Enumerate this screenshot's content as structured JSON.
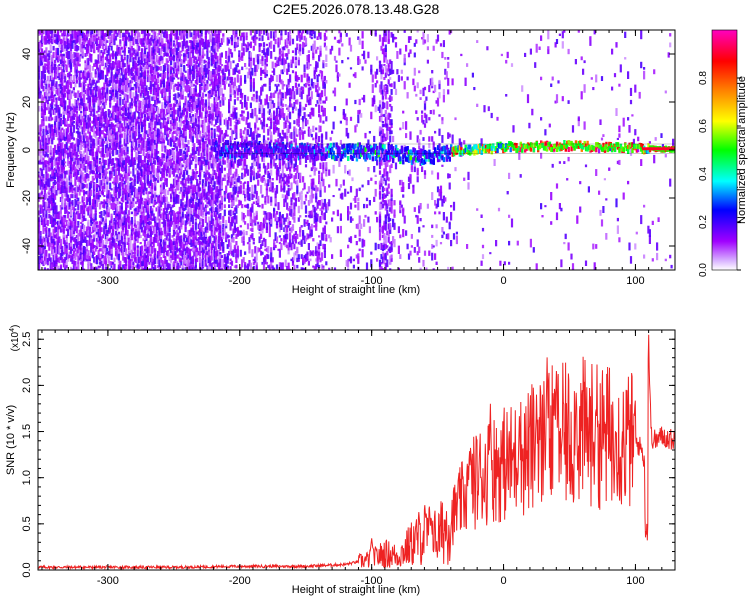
{
  "figure": {
    "title": "C2E5.2026.078.13.48.G28"
  },
  "chart_data": [
    {
      "type": "heatmap",
      "xlabel": "Height of straight line (km)",
      "ylabel": "Frequency (Hz)",
      "xlim": [
        -353,
        130
      ],
      "ylim": [
        -50,
        50
      ],
      "x_ticks": [
        -300,
        -200,
        -100,
        0,
        100
      ],
      "y_ticks": [
        -40,
        -20,
        0,
        20,
        40
      ],
      "colorbar": {
        "label": "Normalized spectral amplitude",
        "range": [
          0,
          1
        ],
        "ticks": [
          "0.0",
          "0.2",
          "0.4",
          "0.6",
          "0.8"
        ],
        "colors": [
          "#ffffff",
          "#a000ff",
          "#0000ff",
          "#00ffff",
          "#00ff00",
          "#ffff00",
          "#ff8000",
          "#ff0000",
          "#ff00c0"
        ]
      },
      "regions": [
        {
          "x": [
            -353,
            -215
          ],
          "description": "dense scattered low-amplitude noise"
        },
        {
          "x": [
            -215,
            -135
          ],
          "description": "sparser noise, faint band near 0 Hz"
        },
        {
          "x": [
            -135,
            -40
          ],
          "description": "band emerges near 0 Hz, mixed amplitude"
        },
        {
          "x": [
            -40,
            110
          ],
          "description": "strong coherent band near 1 Hz"
        },
        {
          "x": [
            110,
            130
          ],
          "description": "narrow line at 0 Hz"
        }
      ],
      "ridge": [
        {
          "x": -215,
          "f": 0
        },
        {
          "x": -150,
          "f": -1
        },
        {
          "x": -100,
          "f": -1
        },
        {
          "x": -60,
          "f": -3
        },
        {
          "x": -40,
          "f": -1
        },
        {
          "x": 0,
          "f": 1
        },
        {
          "x": 50,
          "f": 1.5
        },
        {
          "x": 100,
          "f": 0.5
        },
        {
          "x": 130,
          "f": 0
        }
      ]
    },
    {
      "type": "line",
      "xlabel": "Height of straight line (km)",
      "ylabel": "SNR (10 * v/v)",
      "y_multiplier_label": "(x10",
      "y_multiplier_exp": "4",
      "xlim": [
        -353,
        130
      ],
      "ylim": [
        0,
        2.6
      ],
      "x_ticks": [
        -300,
        -200,
        -100,
        0,
        100
      ],
      "y_ticks": [
        "0.0",
        "0.5",
        "1.0",
        "1.5",
        "2.0",
        "2.5"
      ],
      "series": [
        {
          "color": "#ee2222",
          "x": [
            -353,
            -300,
            -250,
            -200,
            -150,
            -120,
            -100,
            -90,
            -80,
            -70,
            -60,
            -50,
            -40,
            -30,
            -20,
            -10,
            0,
            10,
            20,
            30,
            40,
            50,
            60,
            70,
            80,
            90,
            100,
            105,
            108,
            110,
            112,
            115,
            120,
            130
          ],
          "y": [
            0.03,
            0.03,
            0.03,
            0.04,
            0.04,
            0.06,
            0.12,
            0.18,
            0.15,
            0.28,
            0.4,
            0.35,
            0.55,
            0.8,
            1.0,
            1.1,
            1.15,
            1.2,
            1.3,
            1.4,
            1.45,
            1.45,
            1.5,
            1.45,
            1.45,
            1.4,
            1.4,
            1.3,
            1.1,
            2.4,
            1.45,
            1.4,
            1.45,
            1.4
          ],
          "peaks": [
            {
              "x": -100,
              "y": 0.35
            },
            {
              "x": -55,
              "y": 0.6
            },
            {
              "x": -25,
              "y": 1.35
            },
            {
              "x": -10,
              "y": 1.8
            },
            {
              "x": 12,
              "y": 1.7
            },
            {
              "x": 25,
              "y": 1.9
            },
            {
              "x": 33,
              "y": 2.35
            },
            {
              "x": 40,
              "y": 2.2
            },
            {
              "x": 55,
              "y": 2.0
            },
            {
              "x": 70,
              "y": 1.85
            },
            {
              "x": 85,
              "y": 1.6
            },
            {
              "x": 110,
              "y": 2.6
            }
          ],
          "dips": [
            {
              "x": 108,
              "y": 0.3
            }
          ]
        }
      ]
    }
  ]
}
